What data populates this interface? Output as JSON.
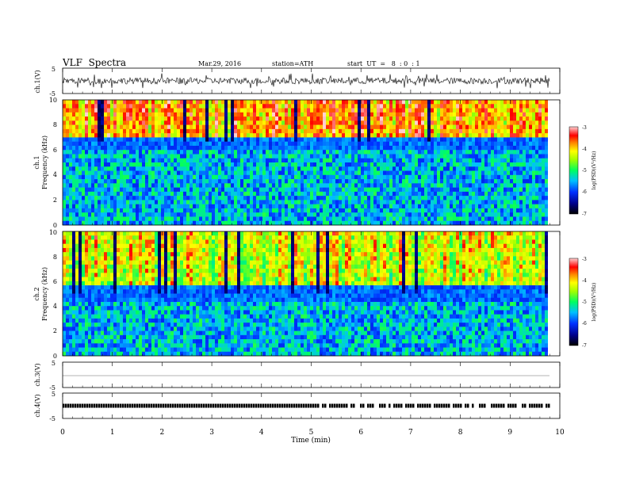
{
  "header": {
    "title": "VLF  Spectra",
    "date": "Mar.29, 2016",
    "station": "station=ATH",
    "start": "start  UT  =   8  : 0  : 1"
  },
  "chart_data": [
    {
      "type": "line",
      "panel": "ch1_waveform",
      "ylabel": "ch.1(V)",
      "ytick_labels": [
        "5",
        "-5"
      ],
      "ylim": [
        -5,
        5
      ],
      "xlim": [
        0,
        10
      ],
      "description_series": [
        {
          "values_note": "noisy VLF waveform, roughly -2 to +2 V"
        }
      ]
    },
    {
      "type": "heatmap",
      "panel": "ch1_spectrogram",
      "ylabel": "ch.1\nFrequency  (kHz)",
      "ylabel_lines": [
        "ch.1",
        "Frequency  (kHz)"
      ],
      "ytick_labels": [
        "10",
        "8",
        "6",
        "4",
        "2",
        "0"
      ],
      "ylim": [
        0,
        10
      ],
      "xlim": [
        0,
        10
      ],
      "colorbar": {
        "label": "log(PSD)(V²/Hz)",
        "ticks": [
          "-3",
          "-4",
          "-5",
          "-6",
          "-7"
        ],
        "range": [
          -7,
          -3
        ]
      }
    },
    {
      "type": "heatmap",
      "panel": "ch2_spectrogram",
      "ylabel_lines": [
        "ch.2",
        "Frequency  (kHz)"
      ],
      "ytick_labels": [
        "10",
        "8",
        "6",
        "4",
        "2",
        "0"
      ],
      "ylim": [
        0,
        10
      ],
      "xlim": [
        0,
        10
      ],
      "colorbar": {
        "label": "log(PSD)(V²/Hz)",
        "ticks": [
          "-3",
          "-4",
          "-5",
          "-6",
          "-7"
        ],
        "range": [
          -7,
          -3
        ]
      }
    },
    {
      "type": "line",
      "panel": "ch3_waveform",
      "ylabel": "ch.3(V)",
      "ytick_labels": [
        "5",
        "-5"
      ],
      "ylim": [
        -5,
        5
      ],
      "xlim": [
        0,
        10
      ],
      "series": [
        {
          "values": [
            0,
            0
          ]
        }
      ]
    },
    {
      "type": "line",
      "panel": "ch4_waveform",
      "ylabel": "ch.4(V)",
      "ytick_labels": [
        "5",
        "-5"
      ],
      "ylim": [
        -5,
        5
      ],
      "xlim": [
        0,
        10
      ],
      "series_note": "square pulse trail near 0 V"
    }
  ],
  "xaxis": {
    "label": "Time  (min)",
    "ticks": [
      "0",
      "1",
      "2",
      "3",
      "4",
      "5",
      "6",
      "7",
      "8",
      "9",
      "10"
    ]
  }
}
